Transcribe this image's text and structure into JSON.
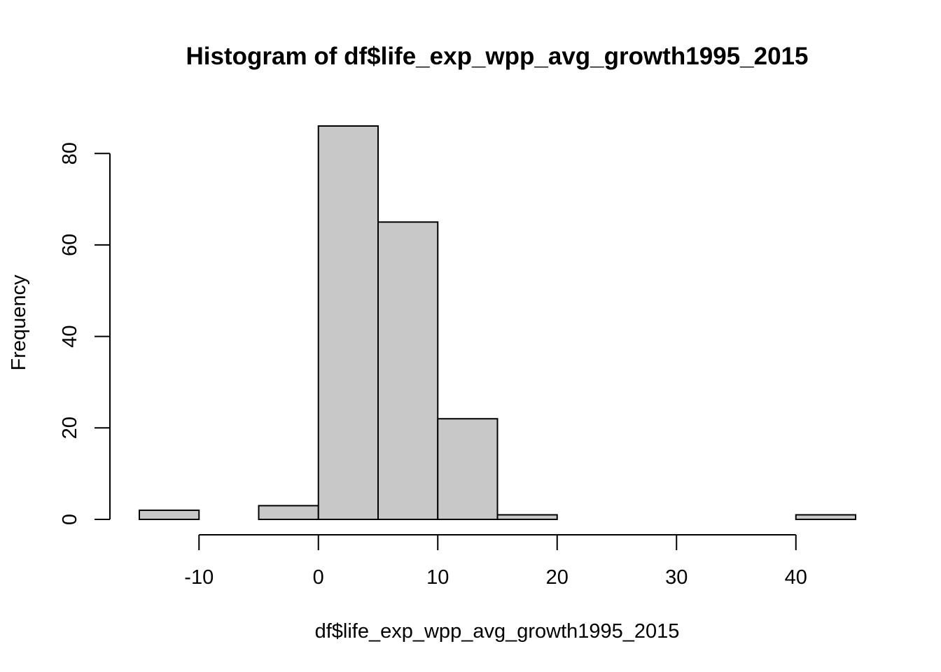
{
  "chart_data": {
    "type": "bar",
    "title": "Histogram of df$life_exp_wpp_avg_growth1995_2015",
    "xlabel": "df$life_exp_wpp_avg_growth1995_2015",
    "ylabel": "Frequency",
    "bins": [
      {
        "x0": -15,
        "x1": -10,
        "count": 2
      },
      {
        "x0": -10,
        "x1": -5,
        "count": 0
      },
      {
        "x0": -5,
        "x1": 0,
        "count": 3
      },
      {
        "x0": 0,
        "x1": 5,
        "count": 86
      },
      {
        "x0": 5,
        "x1": 10,
        "count": 65
      },
      {
        "x0": 10,
        "x1": 15,
        "count": 22
      },
      {
        "x0": 15,
        "x1": 20,
        "count": 1
      },
      {
        "x0": 20,
        "x1": 25,
        "count": 0
      },
      {
        "x0": 25,
        "x1": 30,
        "count": 0
      },
      {
        "x0": 30,
        "x1": 35,
        "count": 0
      },
      {
        "x0": 35,
        "x1": 40,
        "count": 0
      },
      {
        "x0": 40,
        "x1": 45,
        "count": 1
      }
    ],
    "xticks": [
      -10,
      0,
      10,
      20,
      30,
      40
    ],
    "yticks": [
      0,
      20,
      40,
      60,
      80
    ],
    "xlim": [
      -15,
      45
    ],
    "ylim": [
      0,
      86
    ],
    "bar_fill": "#c8c8c8",
    "bar_stroke": "#000000",
    "grid": false,
    "legend": "none"
  }
}
